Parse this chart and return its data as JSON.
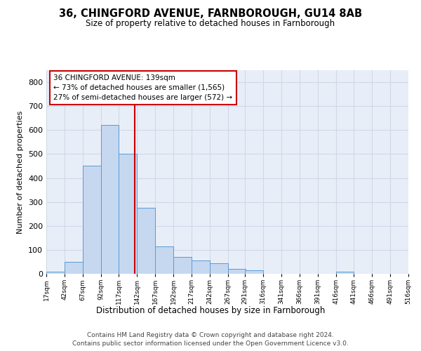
{
  "title_line1": "36, CHINGFORD AVENUE, FARNBOROUGH, GU14 8AB",
  "title_line2": "Size of property relative to detached houses in Farnborough",
  "xlabel": "Distribution of detached houses by size in Farnborough",
  "ylabel": "Number of detached properties",
  "footer_line1": "Contains HM Land Registry data © Crown copyright and database right 2024.",
  "footer_line2": "Contains public sector information licensed under the Open Government Licence v3.0.",
  "property_size": 139,
  "annotation_line1": "36 CHINGFORD AVENUE: 139sqm",
  "annotation_line2": "← 73% of detached houses are smaller (1,565)",
  "annotation_line3": "27% of semi-detached houses are larger (572) →",
  "bar_color": "#c5d8f0",
  "bar_edge_color": "#5b9bd5",
  "vline_color": "#cc0000",
  "annotation_box_edge_color": "#cc0000",
  "grid_color": "#d0d8e8",
  "background_color": "#e8eef8",
  "bin_edges": [
    17,
    42,
    67,
    92,
    117,
    142,
    167,
    192,
    217,
    242,
    267,
    291,
    316,
    341,
    366,
    391,
    416,
    441,
    466,
    491,
    516
  ],
  "bin_labels": [
    "17sqm",
    "42sqm",
    "67sqm",
    "92sqm",
    "117sqm",
    "142sqm",
    "167sqm",
    "192sqm",
    "217sqm",
    "242sqm",
    "267sqm",
    "291sqm",
    "316sqm",
    "341sqm",
    "366sqm",
    "391sqm",
    "416sqm",
    "441sqm",
    "466sqm",
    "491sqm",
    "516sqm"
  ],
  "bar_heights": [
    10,
    50,
    450,
    620,
    500,
    275,
    115,
    70,
    55,
    45,
    20,
    15,
    0,
    0,
    0,
    0,
    10,
    0,
    0,
    0
  ],
  "ylim": [
    0,
    850
  ],
  "yticks": [
    0,
    100,
    200,
    300,
    400,
    500,
    600,
    700,
    800
  ]
}
